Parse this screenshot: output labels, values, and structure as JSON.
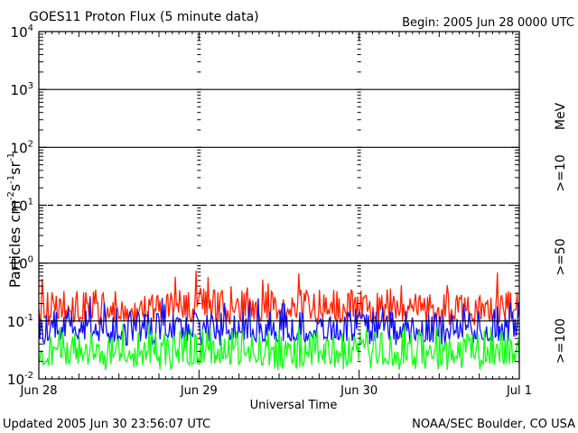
{
  "chart_data": {
    "type": "line",
    "title": "GOES11 Proton Flux (5 minute data)",
    "begin_label": "Begin: 2005 Jun 28 0000 UTC",
    "xlabel": "Universal Time",
    "ylabel_parts": {
      "base": "Particles cm",
      "e1": "-2",
      "s": "s",
      "e2": "-1",
      "sr": "sr",
      "e3": "-1"
    },
    "units_label": "MeV",
    "x_ticks": [
      "Jun 28",
      "Jun 29",
      "Jun 30",
      "Jul 1"
    ],
    "x_range_days": [
      0,
      3
    ],
    "y_scale": "log",
    "ylim": [
      0.01,
      10000
    ],
    "y_ticks": [
      {
        "base": "10",
        "exp": "4"
      },
      {
        "base": "10",
        "exp": "3"
      },
      {
        "base": "10",
        "exp": "2"
      },
      {
        "base": "10",
        "exp": "1"
      },
      {
        "base": "10",
        "exp": "0"
      },
      {
        "base": "10",
        "exp": "-1"
      },
      {
        "base": "10",
        "exp": "-2"
      }
    ],
    "threshold_lines": [
      {
        "value": 1000,
        "style": "solid"
      },
      {
        "value": 100,
        "style": "solid"
      },
      {
        "value": 10,
        "style": "dashed"
      },
      {
        "value": 1,
        "style": "solid"
      },
      {
        "value": 0.1,
        "style": "solid"
      }
    ],
    "series": [
      {
        "name": ">=10",
        "color": "#ff2000",
        "typical_min": 0.1,
        "typical_max": 0.35,
        "peak": 0.8
      },
      {
        "name": ">=50",
        "color": "#1010ff",
        "typical_min": 0.045,
        "typical_max": 0.15,
        "peak": 0.25
      },
      {
        "name": ">=100",
        "color": "#10ff10",
        "typical_min": 0.017,
        "typical_max": 0.07,
        "peak": 0.09
      }
    ]
  },
  "footer": {
    "updated": "Updated 2005 Jun 30 23:56:07 UTC",
    "source": "NOAA/SEC Boulder, CO USA"
  }
}
